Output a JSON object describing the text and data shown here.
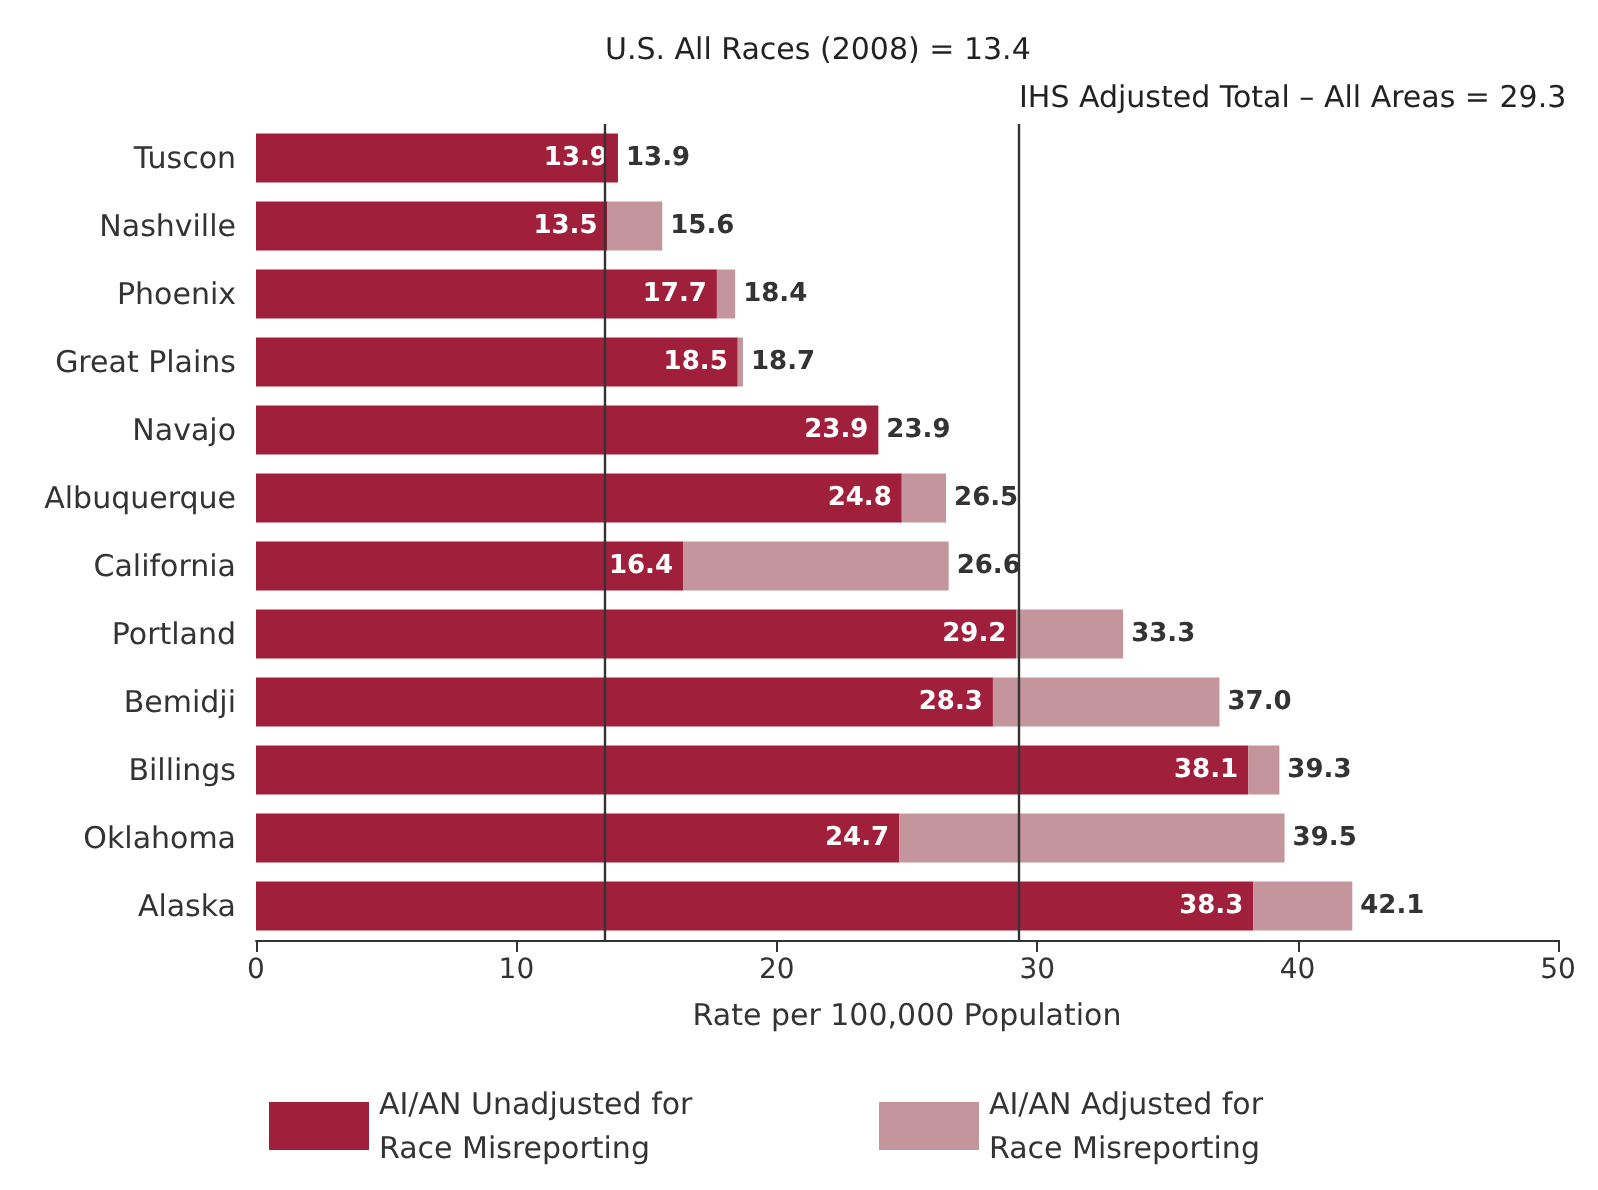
{
  "chart_data": {
    "type": "bar",
    "orientation": "horizontal",
    "stacked": true,
    "categories": [
      "Tuscon",
      "Nashville",
      "Phoenix",
      "Great Plains",
      "Navajo",
      "Albuquerque",
      "California",
      "Portland",
      "Bemidji",
      "Billings",
      "Oklahoma",
      "Alaska"
    ],
    "series": [
      {
        "name": "AI/AN Unadjusted for Race Misreporting",
        "color": "#a0203c",
        "values": [
          13.9,
          13.5,
          17.7,
          18.5,
          23.9,
          24.8,
          16.4,
          29.2,
          28.3,
          38.1,
          24.7,
          38.3
        ],
        "value_labels": [
          "13.9",
          "13.5",
          "17.7",
          "18.5",
          "23.9",
          "24.8",
          "16.4",
          "29.2",
          "28.3",
          "38.1",
          "24.7",
          "38.3"
        ]
      },
      {
        "name": "AI/AN Adjusted for Race Misreporting",
        "color": "#c4959c",
        "values": [
          0,
          2.1,
          0.7,
          0.2,
          0,
          1.7,
          10.2,
          4.1,
          8.7,
          1.2,
          14.8,
          3.8
        ]
      }
    ],
    "totals": [
      "13.9",
      "15.6",
      "18.4",
      "18.7",
      "23.9",
      "26.5",
      "26.6",
      "33.3",
      "37.0",
      "39.3",
      "39.5",
      "42.1"
    ],
    "xlabel": "Rate per 100,000 Population",
    "xlim": [
      0,
      50
    ],
    "xticks": [
      0,
      10,
      20,
      30,
      40,
      50
    ],
    "grid": false,
    "legend": "bottom",
    "ref_lines": [
      {
        "axis": "x",
        "value": 13.4,
        "label": "U.S. All Races (2008) = 13.4",
        "color": "#333333"
      },
      {
        "axis": "x",
        "value": 29.3,
        "label": "IHS Adjusted Total – All Areas = 29.3",
        "color": "#333333"
      }
    ]
  }
}
